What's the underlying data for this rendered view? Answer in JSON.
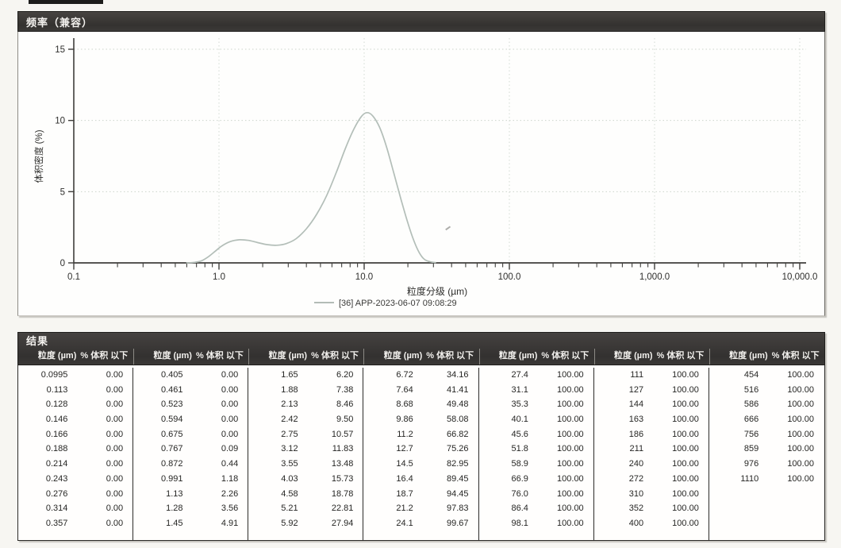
{
  "chart_panel": {
    "title": "频率（兼容）"
  },
  "chart_data": {
    "type": "line",
    "title": "频率（兼容）",
    "xlabel": "粒度分级 (µm)",
    "ylabel": "体积密度 (%)",
    "x_scale": "log",
    "xlim": [
      0.1,
      10000
    ],
    "ylim": [
      0,
      15
    ],
    "y_ticks": [
      0,
      5,
      10,
      15
    ],
    "x_ticks": [
      0.1,
      1,
      10,
      100,
      1000,
      10000
    ],
    "x_tick_labels": [
      "0.1",
      "1.0",
      "10.0",
      "100.0",
      "1,000.0",
      "10,000.0"
    ],
    "grid": true,
    "legend_position": "bottom",
    "series": [
      {
        "name": "[36] APP-2023-06-07 09:08:29",
        "color": "#b3beb8",
        "x": [
          0.6,
          0.68,
          0.76,
          0.85,
          0.95,
          1.05,
          1.2,
          1.38,
          1.6,
          1.85,
          2.15,
          2.5,
          2.9,
          3.4,
          4.0,
          4.7,
          5.5,
          6.4,
          7.4,
          8.5,
          9.6,
          10.5,
          11.5,
          12.8,
          14.3,
          16.0,
          18.0,
          20.0,
          22.0,
          24.0,
          26.0,
          28.5,
          31.0
        ],
        "y": [
          0.0,
          0.04,
          0.15,
          0.45,
          0.85,
          1.2,
          1.5,
          1.62,
          1.58,
          1.42,
          1.28,
          1.24,
          1.35,
          1.7,
          2.4,
          3.4,
          4.7,
          6.3,
          8.0,
          9.4,
          10.3,
          10.55,
          10.3,
          9.5,
          8.1,
          6.3,
          4.4,
          2.8,
          1.55,
          0.7,
          0.25,
          0.08,
          0.02
        ]
      }
    ]
  },
  "results_panel": {
    "title": "结果",
    "col_headers": {
      "size": "粒度 (µm)",
      "pct": "% 体积 以下"
    },
    "groups": [
      {
        "rows": [
          [
            "0.0995",
            "0.00"
          ],
          [
            "0.113",
            "0.00"
          ],
          [
            "0.128",
            "0.00"
          ],
          [
            "0.146",
            "0.00"
          ],
          [
            "0.166",
            "0.00"
          ],
          [
            "0.188",
            "0.00"
          ],
          [
            "0.214",
            "0.00"
          ],
          [
            "0.243",
            "0.00"
          ],
          [
            "0.276",
            "0.00"
          ],
          [
            "0.314",
            "0.00"
          ],
          [
            "0.357",
            "0.00"
          ]
        ]
      },
      {
        "rows": [
          [
            "0.405",
            "0.00"
          ],
          [
            "0.461",
            "0.00"
          ],
          [
            "0.523",
            "0.00"
          ],
          [
            "0.594",
            "0.00"
          ],
          [
            "0.675",
            "0.00"
          ],
          [
            "0.767",
            "0.09"
          ],
          [
            "0.872",
            "0.44"
          ],
          [
            "0.991",
            "1.18"
          ],
          [
            "1.13",
            "2.26"
          ],
          [
            "1.28",
            "3.56"
          ],
          [
            "1.45",
            "4.91"
          ]
        ]
      },
      {
        "rows": [
          [
            "1.65",
            "6.20"
          ],
          [
            "1.88",
            "7.38"
          ],
          [
            "2.13",
            "8.46"
          ],
          [
            "2.42",
            "9.50"
          ],
          [
            "2.75",
            "10.57"
          ],
          [
            "3.12",
            "11.83"
          ],
          [
            "3.55",
            "13.48"
          ],
          [
            "4.03",
            "15.73"
          ],
          [
            "4.58",
            "18.78"
          ],
          [
            "5.21",
            "22.81"
          ],
          [
            "5.92",
            "27.94"
          ]
        ]
      },
      {
        "rows": [
          [
            "6.72",
            "34.16"
          ],
          [
            "7.64",
            "41.41"
          ],
          [
            "8.68",
            "49.48"
          ],
          [
            "9.86",
            "58.08"
          ],
          [
            "11.2",
            "66.82"
          ],
          [
            "12.7",
            "75.26"
          ],
          [
            "14.5",
            "82.95"
          ],
          [
            "16.4",
            "89.45"
          ],
          [
            "18.7",
            "94.45"
          ],
          [
            "21.2",
            "97.83"
          ],
          [
            "24.1",
            "99.67"
          ]
        ]
      },
      {
        "rows": [
          [
            "27.4",
            "100.00"
          ],
          [
            "31.1",
            "100.00"
          ],
          [
            "35.3",
            "100.00"
          ],
          [
            "40.1",
            "100.00"
          ],
          [
            "45.6",
            "100.00"
          ],
          [
            "51.8",
            "100.00"
          ],
          [
            "58.9",
            "100.00"
          ],
          [
            "66.9",
            "100.00"
          ],
          [
            "76.0",
            "100.00"
          ],
          [
            "86.4",
            "100.00"
          ],
          [
            "98.1",
            "100.00"
          ]
        ]
      },
      {
        "rows": [
          [
            "111",
            "100.00"
          ],
          [
            "127",
            "100.00"
          ],
          [
            "144",
            "100.00"
          ],
          [
            "163",
            "100.00"
          ],
          [
            "186",
            "100.00"
          ],
          [
            "211",
            "100.00"
          ],
          [
            "240",
            "100.00"
          ],
          [
            "272",
            "100.00"
          ],
          [
            "310",
            "100.00"
          ],
          [
            "352",
            "100.00"
          ],
          [
            "400",
            "100.00"
          ]
        ]
      },
      {
        "rows": [
          [
            "454",
            "100.00"
          ],
          [
            "516",
            "100.00"
          ],
          [
            "586",
            "100.00"
          ],
          [
            "666",
            "100.00"
          ],
          [
            "756",
            "100.00"
          ],
          [
            "859",
            "100.00"
          ],
          [
            "976",
            "100.00"
          ],
          [
            "1110",
            "100.00"
          ]
        ]
      }
    ]
  }
}
